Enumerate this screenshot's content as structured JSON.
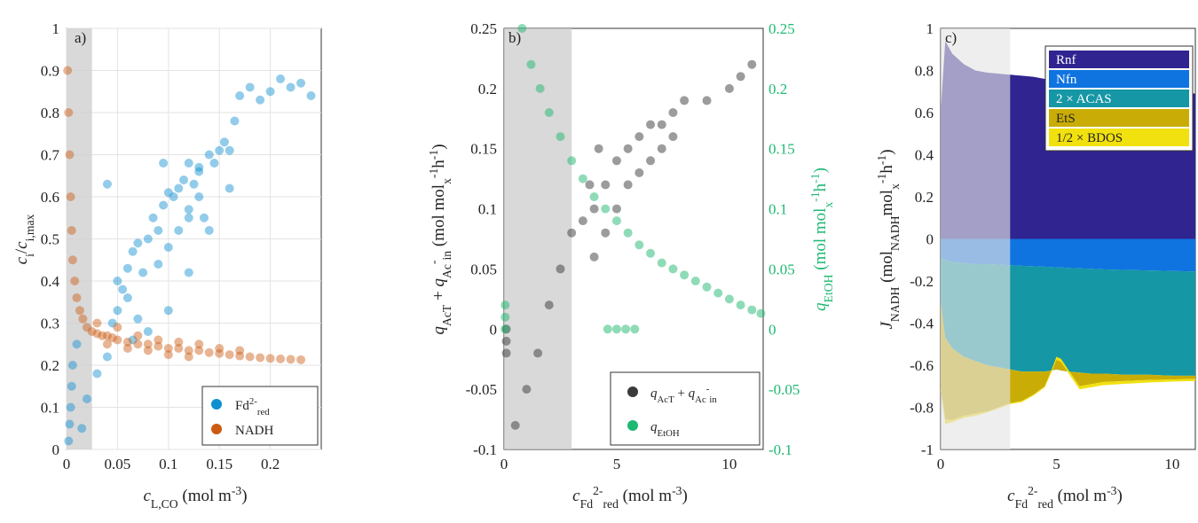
{
  "chart_data": [
    {
      "type": "scatter",
      "panel_label": "a)",
      "xlabel": "c_L,CO (mol m^-3)",
      "ylabel": "c_i / c_i,max",
      "xlim": [
        0,
        0.25
      ],
      "ylim": [
        0,
        1
      ],
      "xticks": [
        "0",
        "0.05",
        "0.1",
        "0.15",
        "0.2"
      ],
      "yticks": [
        "0",
        "0.1",
        "0.2",
        "0.3",
        "0.4",
        "0.5",
        "0.6",
        "0.7",
        "0.8",
        "0.9",
        "1"
      ],
      "grid": true,
      "legend_position": "bottom-right",
      "shaded_x_range": [
        0,
        0.025
      ],
      "series": [
        {
          "name": "Fd2-red",
          "color": "#0e8fd0",
          "points": [
            [
              0.002,
              0.02
            ],
            [
              0.003,
              0.06
            ],
            [
              0.004,
              0.1
            ],
            [
              0.005,
              0.15
            ],
            [
              0.006,
              0.2
            ],
            [
              0.01,
              0.25
            ],
            [
              0.015,
              0.05
            ],
            [
              0.02,
              0.12
            ],
            [
              0.03,
              0.18
            ],
            [
              0.04,
              0.22
            ],
            [
              0.045,
              0.3
            ],
            [
              0.05,
              0.33
            ],
            [
              0.055,
              0.38
            ],
            [
              0.06,
              0.43
            ],
            [
              0.065,
              0.47
            ],
            [
              0.07,
              0.49
            ],
            [
              0.075,
              0.42
            ],
            [
              0.08,
              0.5
            ],
            [
              0.085,
              0.55
            ],
            [
              0.09,
              0.52
            ],
            [
              0.095,
              0.58
            ],
            [
              0.1,
              0.61
            ],
            [
              0.105,
              0.6
            ],
            [
              0.11,
              0.62
            ],
            [
              0.115,
              0.64
            ],
            [
              0.12,
              0.57
            ],
            [
              0.125,
              0.63
            ],
            [
              0.13,
              0.67
            ],
            [
              0.135,
              0.55
            ],
            [
              0.14,
              0.7
            ],
            [
              0.145,
              0.68
            ],
            [
              0.15,
              0.71
            ],
            [
              0.155,
              0.73
            ],
            [
              0.16,
              0.71
            ],
            [
              0.165,
              0.78
            ],
            [
              0.17,
              0.84
            ],
            [
              0.18,
              0.86
            ],
            [
              0.19,
              0.83
            ],
            [
              0.2,
              0.85
            ],
            [
              0.21,
              0.88
            ],
            [
              0.22,
              0.86
            ],
            [
              0.23,
              0.87
            ],
            [
              0.24,
              0.84
            ],
            [
              0.05,
              0.4
            ],
            [
              0.06,
              0.36
            ],
            [
              0.07,
              0.31
            ],
            [
              0.09,
              0.44
            ],
            [
              0.1,
              0.48
            ],
            [
              0.11,
              0.52
            ],
            [
              0.12,
              0.55
            ],
            [
              0.13,
              0.6
            ],
            [
              0.08,
              0.28
            ],
            [
              0.065,
              0.26
            ],
            [
              0.04,
              0.63
            ],
            [
              0.095,
              0.68
            ],
            [
              0.12,
              0.68
            ],
            [
              0.13,
              0.66
            ],
            [
              0.14,
              0.52
            ],
            [
              0.12,
              0.42
            ],
            [
              0.1,
              0.33
            ],
            [
              0.16,
              0.62
            ]
          ]
        },
        {
          "name": "NADH",
          "color": "#cc5a12",
          "points": [
            [
              0.001,
              0.9
            ],
            [
              0.002,
              0.8
            ],
            [
              0.003,
              0.7
            ],
            [
              0.004,
              0.6
            ],
            [
              0.005,
              0.52
            ],
            [
              0.006,
              0.45
            ],
            [
              0.008,
              0.4
            ],
            [
              0.01,
              0.36
            ],
            [
              0.013,
              0.33
            ],
            [
              0.016,
              0.31
            ],
            [
              0.02,
              0.29
            ],
            [
              0.025,
              0.28
            ],
            [
              0.03,
              0.275
            ],
            [
              0.035,
              0.27
            ],
            [
              0.04,
              0.27
            ],
            [
              0.045,
              0.265
            ],
            [
              0.05,
              0.26
            ],
            [
              0.06,
              0.255
            ],
            [
              0.07,
              0.25
            ],
            [
              0.08,
              0.25
            ],
            [
              0.09,
              0.245
            ],
            [
              0.1,
              0.24
            ],
            [
              0.11,
              0.24
            ],
            [
              0.12,
              0.235
            ],
            [
              0.13,
              0.235
            ],
            [
              0.14,
              0.23
            ],
            [
              0.15,
              0.228
            ],
            [
              0.16,
              0.225
            ],
            [
              0.17,
              0.222
            ],
            [
              0.18,
              0.22
            ],
            [
              0.19,
              0.218
            ],
            [
              0.2,
              0.216
            ],
            [
              0.21,
              0.215
            ],
            [
              0.22,
              0.214
            ],
            [
              0.23,
              0.213
            ],
            [
              0.03,
              0.3
            ],
            [
              0.05,
              0.29
            ],
            [
              0.07,
              0.27
            ],
            [
              0.09,
              0.26
            ],
            [
              0.11,
              0.255
            ],
            [
              0.13,
              0.25
            ],
            [
              0.15,
              0.24
            ],
            [
              0.17,
              0.235
            ],
            [
              0.04,
              0.25
            ],
            [
              0.06,
              0.24
            ],
            [
              0.08,
              0.235
            ],
            [
              0.1,
              0.225
            ],
            [
              0.12,
              0.22
            ]
          ]
        }
      ],
      "legend": [
        "Fd2-red",
        "NADH"
      ]
    },
    {
      "type": "scatter",
      "panel_label": "b)",
      "xlabel": "c_Fd2-red (mol m^-3)",
      "ylabel": "q_AcT + q_Ac-in (mol mol_x^-1 h^-1)",
      "ylabel_right": "q_EtOH (mol mol_x^-1 h^-1)",
      "xlim": [
        0,
        11.5
      ],
      "ylim": [
        -0.1,
        0.25
      ],
      "ylim_right": [
        -0.1,
        0.25
      ],
      "xticks": [
        "0",
        "5",
        "10"
      ],
      "yticks": [
        "-0.1",
        "-0.05",
        "0",
        "0.05",
        "0.1",
        "0.15",
        "0.2",
        "0.25"
      ],
      "yticks_right": [
        "-0.1",
        "-0.05",
        "0",
        "0.05",
        "0.1",
        "0.15",
        "0.2",
        "0.25"
      ],
      "grid": false,
      "legend_position": "bottom-right",
      "shaded_x_range": [
        0,
        3
      ],
      "series": [
        {
          "name": "q_AcT + q_Ac-in",
          "color": "#3a3a3a",
          "points": [
            [
              0.5,
              -0.08
            ],
            [
              1,
              -0.05
            ],
            [
              1.5,
              -0.02
            ],
            [
              2,
              0.02
            ],
            [
              2.5,
              0.05
            ],
            [
              3,
              0.08
            ],
            [
              3.5,
              0.09
            ],
            [
              4,
              0.1
            ],
            [
              4.5,
              0.12
            ],
            [
              5,
              0.14
            ],
            [
              5.5,
              0.15
            ],
            [
              6,
              0.16
            ],
            [
              6.5,
              0.17
            ],
            [
              7,
              0.17
            ],
            [
              7.5,
              0.18
            ],
            [
              8,
              0.19
            ],
            [
              9,
              0.19
            ],
            [
              10,
              0.2
            ],
            [
              10.5,
              0.21
            ],
            [
              11,
              0.22
            ],
            [
              4,
              0.06
            ],
            [
              4.5,
              0.08
            ],
            [
              5,
              0.1
            ],
            [
              5.5,
              0.12
            ],
            [
              6,
              0.13
            ],
            [
              6.5,
              0.14
            ],
            [
              7,
              0.15
            ],
            [
              7.5,
              0.16
            ],
            [
              3.8,
              0.12
            ],
            [
              4.2,
              0.15
            ],
            [
              0.1,
              -0.02
            ],
            [
              0.1,
              -0.01
            ],
            [
              0.1,
              0.0
            ]
          ]
        },
        {
          "name": "q_EtOH",
          "color": "#1fb872",
          "points": [
            [
              0.8,
              0.25
            ],
            [
              1.2,
              0.22
            ],
            [
              1.6,
              0.2
            ],
            [
              2,
              0.18
            ],
            [
              2.5,
              0.16
            ],
            [
              3,
              0.14
            ],
            [
              3.5,
              0.125
            ],
            [
              4,
              0.11
            ],
            [
              4.5,
              0.1
            ],
            [
              5,
              0.09
            ],
            [
              5.5,
              0.08
            ],
            [
              6,
              0.07
            ],
            [
              6.5,
              0.063
            ],
            [
              7,
              0.055
            ],
            [
              7.5,
              0.05
            ],
            [
              8,
              0.045
            ],
            [
              8.5,
              0.04
            ],
            [
              9,
              0.035
            ],
            [
              9.5,
              0.03
            ],
            [
              10,
              0.025
            ],
            [
              10.5,
              0.02
            ],
            [
              11,
              0.016
            ],
            [
              11.4,
              0.013
            ],
            [
              4.6,
              0.0
            ],
            [
              5,
              0.0
            ],
            [
              5.4,
              0.0
            ],
            [
              5.8,
              0.0
            ],
            [
              0.05,
              0.02
            ],
            [
              0.05,
              0.01
            ],
            [
              0.05,
              0.0
            ]
          ]
        }
      ],
      "legend": [
        "q_AcT + q_Ac-in",
        "q_EtOH"
      ]
    },
    {
      "type": "area",
      "panel_label": "c)",
      "xlabel": "c_Fd2-red (mol m^-3)",
      "ylabel": "J_NADH (mol_NADH mol_x^-1 h^-1)",
      "xlim": [
        0,
        11
      ],
      "ylim": [
        -1,
        1
      ],
      "xticks": [
        "0",
        "5",
        "10"
      ],
      "yticks": [
        "-1",
        "-0.8",
        "-0.6",
        "-0.4",
        "-0.2",
        "0",
        "0.2",
        "0.4",
        "0.6",
        "0.8",
        "1"
      ],
      "grid": false,
      "legend_position": "top-right",
      "shaded_x_range": [
        0,
        3
      ],
      "x": [
        0.0,
        0.2,
        0.5,
        1,
        1.5,
        2,
        2.5,
        3,
        3.5,
        4,
        4.5,
        4.8,
        5,
        5.2,
        5.5,
        6,
        6.5,
        7,
        8,
        9,
        10,
        11
      ],
      "series": [
        {
          "name": "Rnf",
          "color": "#302491",
          "values": [
            0.6,
            0.94,
            0.88,
            0.83,
            0.8,
            0.79,
            0.785,
            0.78,
            0.775,
            0.77,
            0.76,
            0.755,
            0.75,
            0.748,
            0.745,
            0.74,
            0.735,
            0.73,
            0.72,
            0.71,
            0.7,
            0.69
          ]
        },
        {
          "name": "Nfn",
          "color": "#0f74e0",
          "values": [
            -0.09,
            -0.1,
            -0.11,
            -0.115,
            -0.12,
            -0.12,
            -0.122,
            -0.125,
            -0.128,
            -0.13,
            -0.132,
            -0.134,
            -0.135,
            -0.136,
            -0.138,
            -0.14,
            -0.142,
            -0.145,
            -0.148,
            -0.15,
            -0.153,
            -0.155
          ]
        },
        {
          "name": "2 × ACAS",
          "color": "#1597a5",
          "values": [
            -0.3,
            -0.47,
            -0.52,
            -0.56,
            -0.58,
            -0.6,
            -0.61,
            -0.62,
            -0.63,
            -0.63,
            -0.63,
            -0.625,
            -0.62,
            -0.625,
            -0.63,
            -0.635,
            -0.64,
            -0.64,
            -0.645,
            -0.645,
            -0.65,
            -0.65
          ]
        },
        {
          "name": "EtS",
          "color": "#c9ad06",
          "values": [
            -0.7,
            -0.86,
            -0.86,
            -0.84,
            -0.83,
            -0.82,
            -0.8,
            -0.78,
            -0.77,
            -0.74,
            -0.7,
            -0.62,
            -0.56,
            -0.57,
            -0.62,
            -0.7,
            -0.69,
            -0.68,
            -0.675,
            -0.67,
            -0.668,
            -0.665
          ]
        },
        {
          "name": "1/2 × BDOS",
          "color": "#f1e10f",
          "values": [
            -0.72,
            -0.88,
            -0.87,
            -0.85,
            -0.84,
            -0.825,
            -0.805,
            -0.785,
            -0.775,
            -0.745,
            -0.705,
            -0.63,
            -0.575,
            -0.585,
            -0.635,
            -0.715,
            -0.705,
            -0.695,
            -0.688,
            -0.682,
            -0.678,
            -0.675
          ]
        }
      ],
      "legend": [
        "Rnf",
        "Nfn",
        "2 × ACAS",
        "EtS",
        "1/2 × BDOS"
      ]
    }
  ]
}
